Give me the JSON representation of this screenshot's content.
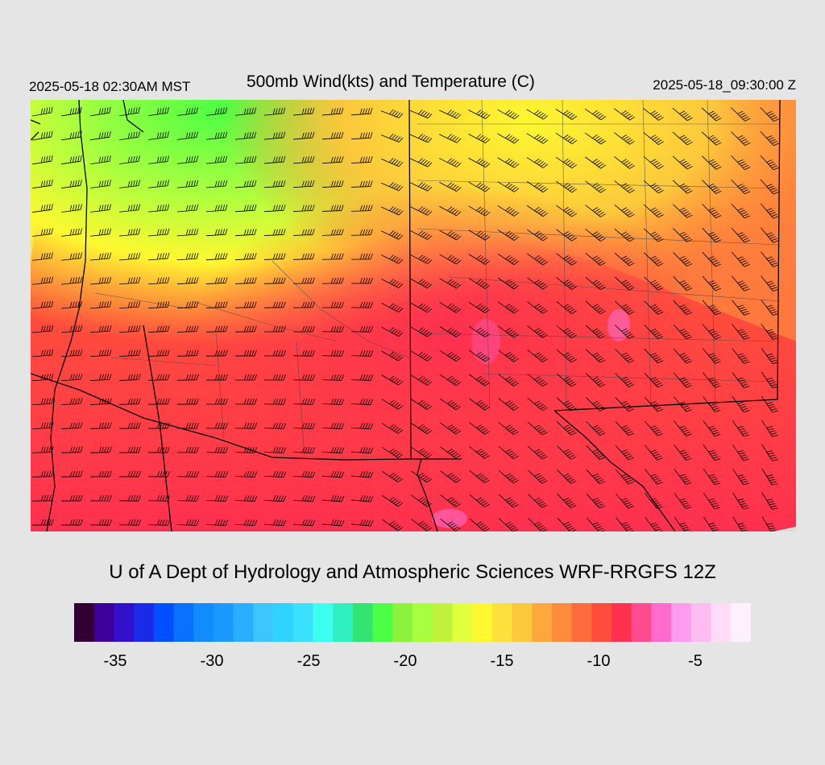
{
  "header": {
    "local_time": "2025-05-18 02:30AM MST",
    "title": "500mb Wind(kts) and Temperature (C)",
    "valid_time": "2025-05-18_09:30:00 Z"
  },
  "credit": "U of A Dept of Hydrology and Atmospheric Sciences WRF-RRGFS 12Z",
  "colorbar": {
    "min": -36,
    "max": -1,
    "tick_labels": [
      "-35",
      "-30",
      "-25",
      "-20",
      "-15",
      "-10",
      "-5"
    ],
    "tick_values": [
      -35,
      -30,
      -25,
      -20,
      -15,
      -10,
      -5
    ],
    "colors": [
      "#330033",
      "#3d0099",
      "#3311cc",
      "#1a2ae6",
      "#0050ff",
      "#0a70ff",
      "#128bff",
      "#1a9aff",
      "#28afff",
      "#3cc6ff",
      "#30d3ff",
      "#3ce0ff",
      "#3cfff0",
      "#30f0c0",
      "#32e472",
      "#4cff44",
      "#8cf23c",
      "#a8ff40",
      "#c0f23c",
      "#e0ff3c",
      "#fff830",
      "#fde03c",
      "#fcc83c",
      "#fca83c",
      "#ff8c3c",
      "#ff6c3c",
      "#ff4c3c",
      "#ff3050",
      "#ff4c90",
      "#ff6ccc",
      "#ff9cf0",
      "#ffbcf0",
      "#ffdcf8",
      "#fff0fc"
    ]
  },
  "map": {
    "field": "500mb temperature with wind barbs",
    "background": "#dcdcdc"
  }
}
